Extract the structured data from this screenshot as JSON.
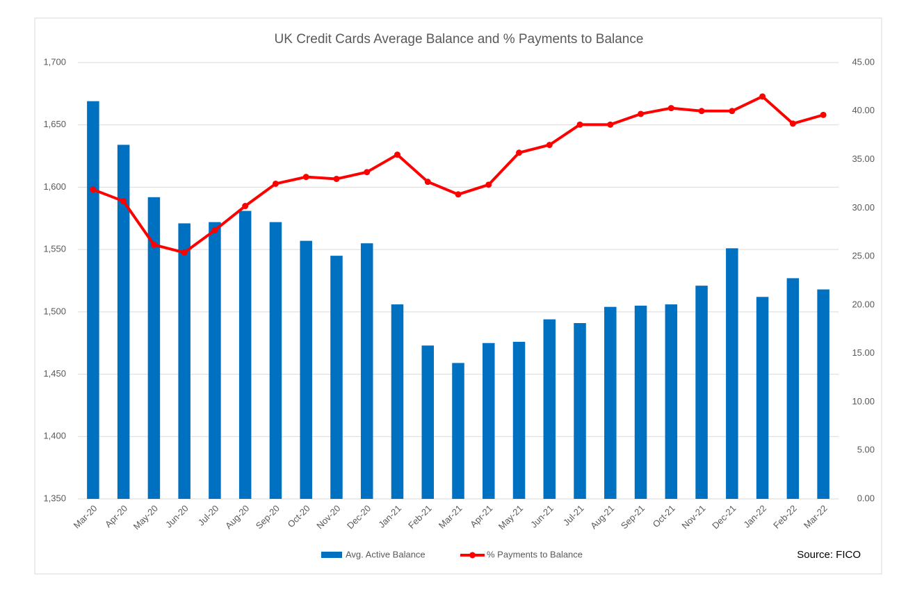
{
  "chart_data": {
    "type": "bar_line",
    "title": "UK Credit Cards Average Balance and % Payments to Balance",
    "annotation": "Source: FICO",
    "categories": [
      "Mar-20",
      "Apr-20",
      "May-20",
      "Jun-20",
      "Jul-20",
      "Aug-20",
      "Sep-20",
      "Oct-20",
      "Nov-20",
      "Dec-20",
      "Jan-21",
      "Feb-21",
      "Mar-21",
      "Apr-21",
      "May-21",
      "Jun-21",
      "Jul-21",
      "Aug-21",
      "Sep-21",
      "Oct-21",
      "Nov-21",
      "Dec-21",
      "Jan-22",
      "Feb-22",
      "Mar-22"
    ],
    "series": [
      {
        "name": "Avg. Active Balance",
        "type": "bar",
        "color": "#0070c0",
        "values": [
          1669,
          1634,
          1592,
          1571,
          1572,
          1581,
          1572,
          1557,
          1545,
          1555,
          1506,
          1473,
          1459,
          1475,
          1476,
          1494,
          1491,
          1504,
          1505,
          1506,
          1521,
          1551,
          1512,
          1527,
          1518
        ]
      },
      {
        "name": "% Payments to Balance",
        "type": "line",
        "axis": "y2",
        "color": "#ff0000",
        "values": [
          31.9,
          30.7,
          26.2,
          25.4,
          27.7,
          30.2,
          32.5,
          33.2,
          33.0,
          33.7,
          35.5,
          32.7,
          31.4,
          32.4,
          35.7,
          36.5,
          38.6,
          38.6,
          39.7,
          40.3,
          40.0,
          40.0,
          41.5,
          38.7,
          39.6
        ]
      }
    ],
    "ylim": [
      1350,
      1700
    ],
    "yticks": [
      {
        "value": 1350,
        "label": "1,350"
      },
      {
        "value": 1400,
        "label": "1,400"
      },
      {
        "value": 1450,
        "label": "1,450"
      },
      {
        "value": 1500,
        "label": "1,500"
      },
      {
        "value": 1550,
        "label": "1,550"
      },
      {
        "value": 1600,
        "label": "1,600"
      },
      {
        "value": 1650,
        "label": "1,650"
      },
      {
        "value": 1700,
        "label": "1,700"
      }
    ],
    "y2lim": [
      0,
      45
    ],
    "y2ticks": [
      {
        "value": 0,
        "label": "0.00"
      },
      {
        "value": 5,
        "label": "5.00"
      },
      {
        "value": 10,
        "label": "10.00"
      },
      {
        "value": 15,
        "label": "15.00"
      },
      {
        "value": 20,
        "label": "20.00"
      },
      {
        "value": 25,
        "label": "25.00"
      },
      {
        "value": 30,
        "label": "30.00"
      },
      {
        "value": 35,
        "label": "35.00"
      },
      {
        "value": 40,
        "label": "40.00"
      },
      {
        "value": 45,
        "label": "45.00"
      }
    ],
    "grid": true,
    "legend": "bottom"
  }
}
